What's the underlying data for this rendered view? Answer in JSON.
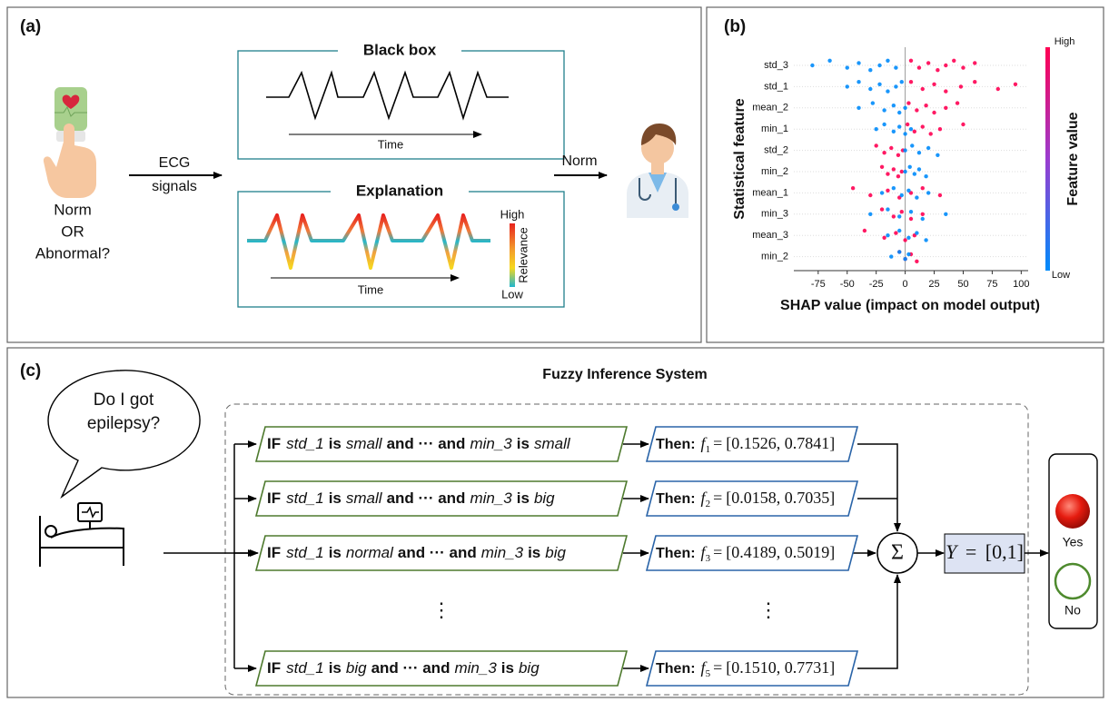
{
  "panel_a": {
    "label": "(a)",
    "question": [
      "Norm",
      "OR",
      "Abnormal?"
    ],
    "input_arrow": [
      "ECG",
      "signals"
    ],
    "black_box": {
      "title": "Black box",
      "axis": "Time"
    },
    "explanation": {
      "title": "Explanation",
      "axis": "Time",
      "high": "High",
      "relevance": "Relevance",
      "low": "Low"
    },
    "output": "Norm"
  },
  "chart_data": {
    "type": "scatter",
    "label": "(b)",
    "xlabel": "SHAP value (impact on model output)",
    "ylabel": "Statistical feature",
    "categories": [
      "std_3",
      "std_1",
      "mean_2",
      "min_1",
      "std_2",
      "min_2",
      "mean_1",
      "min_3",
      "mean_3",
      "min_2"
    ],
    "xlim": [
      -96,
      106
    ],
    "xticks": [
      -75,
      -50,
      -25,
      0,
      25,
      50,
      75,
      100
    ],
    "colorbar": {
      "title": "Feature value",
      "high": "High",
      "low": "Low"
    },
    "series": [
      {
        "name": "High",
        "color": "#ff0052",
        "values": [
          [
            5,
            12,
            20,
            28,
            35,
            42,
            50,
            60
          ],
          [
            5,
            15,
            25,
            35,
            48,
            60,
            80,
            95
          ],
          [
            3,
            10,
            18,
            25,
            35,
            45
          ],
          [
            2,
            8,
            15,
            22,
            30,
            50
          ],
          [
            -25,
            -18,
            -12,
            -6,
            -2
          ],
          [
            -20,
            -15,
            -10,
            -6,
            -3
          ],
          [
            -45,
            -30,
            -15,
            -5,
            5,
            15,
            30
          ],
          [
            -20,
            -10,
            -3,
            5,
            15
          ],
          [
            -35,
            -18,
            -8,
            0,
            8
          ],
          [
            -5,
            0,
            5,
            10
          ]
        ]
      },
      {
        "name": "Low",
        "color": "#008bfb",
        "values": [
          [
            -80,
            -65,
            -50,
            -40,
            -30,
            -22,
            -15,
            -8
          ],
          [
            -50,
            -40,
            -30,
            -22,
            -15,
            -8,
            -3
          ],
          [
            -40,
            -28,
            -18,
            -10,
            -5,
            0
          ],
          [
            -25,
            -18,
            -10,
            -5,
            0,
            5
          ],
          [
            0,
            6,
            12,
            20,
            28
          ],
          [
            0,
            4,
            8,
            12,
            18
          ],
          [
            -20,
            -10,
            -3,
            3,
            10,
            20
          ],
          [
            -30,
            -15,
            -5,
            5,
            15,
            35
          ],
          [
            -15,
            -5,
            3,
            10,
            18
          ],
          [
            -12,
            -5,
            0,
            3
          ]
        ]
      }
    ]
  },
  "panel_c": {
    "label": "(c)",
    "title": "Fuzzy Inference System",
    "speech": [
      "Do I got",
      "epilepsy?"
    ],
    "rules": [
      {
        "if": "IF",
        "var1": "std_1",
        "is1": "is",
        "set1": "small",
        "and": "and ··· and",
        "var2": "min_3",
        "is2": "is",
        "set2": "small",
        "then": "Then:",
        "f": "f",
        "index": "1",
        "eq": "=",
        "interval": "[0.1526, 0.7841]"
      },
      {
        "if": "IF",
        "var1": "std_1",
        "is1": "is",
        "set1": "small",
        "and": "and ··· and",
        "var2": "min_3",
        "is2": "is",
        "set2": "big",
        "then": "Then:",
        "f": "f",
        "index": "2",
        "eq": "=",
        "interval": "[0.0158, 0.7035]"
      },
      {
        "if": "IF",
        "var1": "std_1",
        "is1": "is",
        "set1": "normal",
        "and": "and ··· and",
        "var2": "min_3",
        "is2": "is",
        "set2": "big",
        "then": "Then:",
        "f": "f",
        "index": "3",
        "eq": "=",
        "interval": "[0.4189, 0.5019]"
      },
      {
        "if": "IF",
        "var1": "std_1",
        "is1": "is",
        "set1": "big",
        "and": "and ··· and",
        "var2": "min_3",
        "is2": "is",
        "set2": "big",
        "then": "Then:",
        "f": "f",
        "index": "5",
        "eq": "=",
        "interval": "[0.1510, 0.7731]"
      }
    ],
    "ellipsis": [
      "⋮",
      "⋮"
    ],
    "sum": "Σ",
    "output": {
      "symbol": "Y",
      "eq": "=",
      "interval": "[0,1]"
    },
    "yes": "Yes",
    "no": "No"
  }
}
